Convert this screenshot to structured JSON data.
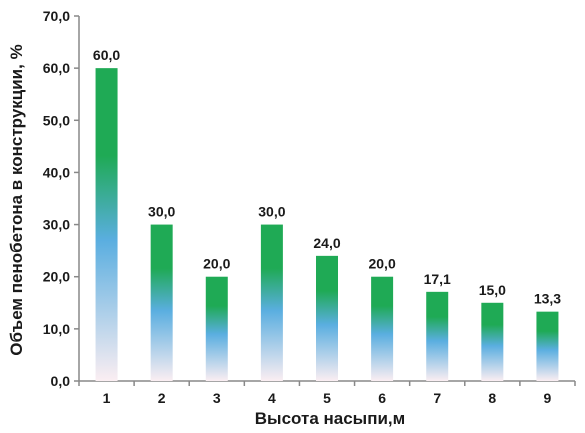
{
  "chart_data": {
    "type": "bar",
    "title": "",
    "xlabel": "Высота насыпи,м",
    "ylabel": "Объем пенобетона в конструкции, %",
    "categories": [
      "1",
      "2",
      "3",
      "4",
      "5",
      "6",
      "7",
      "8",
      "9"
    ],
    "values": [
      60.0,
      30.0,
      20.0,
      30.0,
      24.0,
      20.0,
      17.1,
      15.0,
      13.3
    ],
    "value_labels": [
      "60,0",
      "30,0",
      "20,0",
      "30,0",
      "24,0",
      "20,0",
      "17,1",
      "15,0",
      "13,3"
    ],
    "ylim": [
      0,
      70
    ],
    "yticks": [
      0,
      10,
      20,
      30,
      40,
      50,
      60,
      70
    ],
    "ytick_labels": [
      "0,0",
      "10,0",
      "20,0",
      "30,0",
      "40,0",
      "50,0",
      "60,0",
      "70,0"
    ],
    "grid": false,
    "legend": "none",
    "colors": {
      "bar_top": "#1faa55",
      "bar_mid": "#5aaee0",
      "bar_bottom": "#fbeef2",
      "axis": "#888888",
      "text": "#1a1a1a"
    }
  }
}
